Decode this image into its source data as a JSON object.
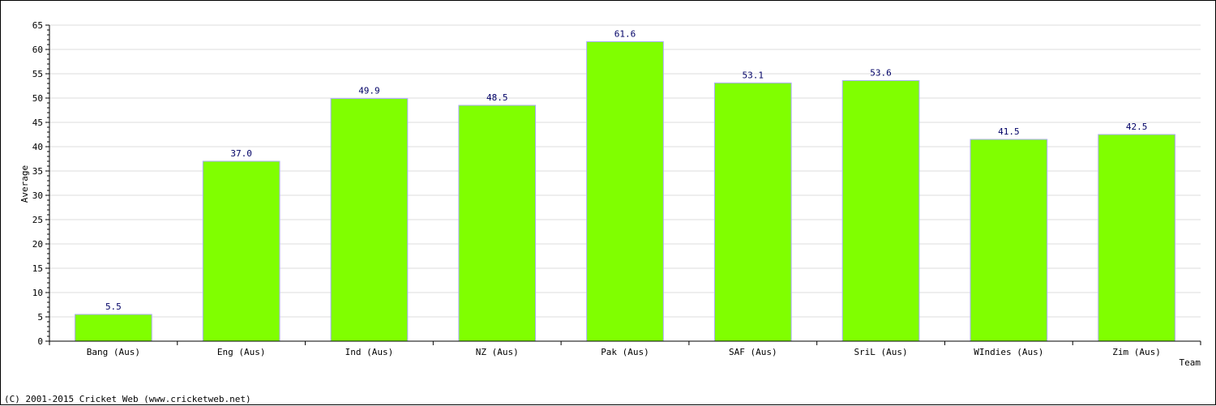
{
  "chart_data": {
    "type": "bar",
    "categories": [
      "Bang (Aus)",
      "Eng (Aus)",
      "Ind (Aus)",
      "NZ (Aus)",
      "Pak (Aus)",
      "SAF (Aus)",
      "SriL (Aus)",
      "WIndies (Aus)",
      "Zim (Aus)"
    ],
    "values": [
      5.5,
      37.0,
      49.9,
      48.5,
      61.6,
      53.1,
      53.6,
      41.5,
      42.5
    ],
    "value_labels": [
      "5.5",
      "37.0",
      "49.9",
      "48.5",
      "61.6",
      "53.1",
      "53.6",
      "41.5",
      "42.5"
    ],
    "title": "",
    "xlabel": "Team",
    "ylabel": "Average",
    "ylim": [
      0,
      65
    ],
    "yticks": [
      0,
      5,
      10,
      15,
      20,
      25,
      30,
      35,
      40,
      45,
      50,
      55,
      60,
      65
    ],
    "grid": true,
    "legend": "none",
    "colors": {
      "bar_fill": "#80ff00",
      "bar_edge": "#aaaaff",
      "grid": "#dddddd",
      "axis": "#000000",
      "data_label": "#000066"
    }
  },
  "footer": {
    "copyright": "(C) 2001-2015 Cricket Web (www.cricketweb.net)"
  }
}
